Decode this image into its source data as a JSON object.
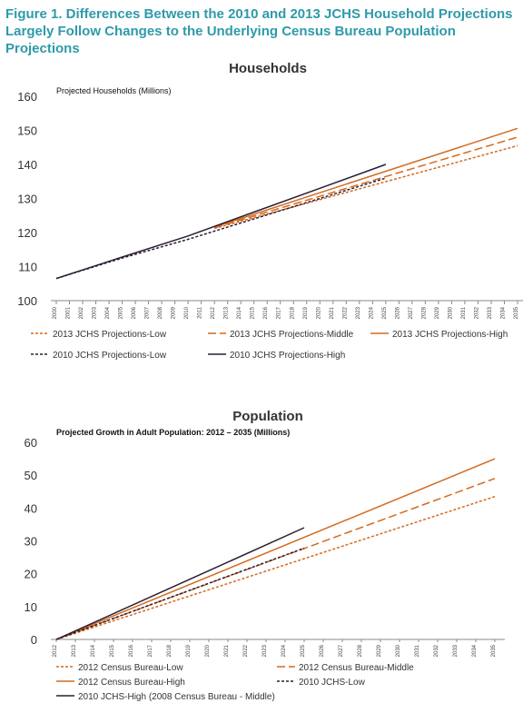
{
  "figure_title": "Figure 1. Differences Between the 2010 and 2013 JCHS Household Projections Largely Follow Changes to the Underlying Census Bureau Population Projections",
  "colors": {
    "accent_title": "#2e9aa9",
    "orange": "#d46a1f",
    "dark": "#2b1e33"
  },
  "chart_data": [
    {
      "type": "line",
      "title": "Households",
      "subtitle": "Projected Households (Millions)",
      "ylim": [
        100,
        160
      ],
      "yticks": [
        100,
        110,
        120,
        130,
        140,
        150,
        160
      ],
      "x_categories": [
        "2000",
        "2001",
        "2002",
        "2003",
        "2004",
        "2005",
        "2006",
        "2007",
        "2008",
        "2009",
        "2010",
        "2011",
        "2012",
        "2013",
        "2014",
        "2015",
        "2016",
        "2017",
        "2018",
        "2019",
        "2020",
        "2021",
        "2022",
        "2023",
        "2024",
        "2025",
        "2026",
        "2027",
        "2028",
        "2029",
        "2030",
        "2031",
        "2032",
        "2033",
        "2034",
        "2035"
      ],
      "legend_placement": "bottom",
      "grid": false,
      "series": [
        {
          "name": "2013 JCHS Projections-Low",
          "color": "#d46a1f",
          "dash": "short",
          "x": [
            2012,
            2035
          ],
          "y": [
            121.2,
            145.5
          ]
        },
        {
          "name": "2013 JCHS Projections-Middle",
          "color": "#d46a1f",
          "dash": "long",
          "x": [
            2012,
            2035
          ],
          "y": [
            121.4,
            148.0
          ]
        },
        {
          "name": "2013 JCHS Projections-High",
          "color": "#d46a1f",
          "dash": "solid",
          "x": [
            2012,
            2035
          ],
          "y": [
            121.6,
            150.6
          ]
        },
        {
          "name": "2010 JCHS Projections-Low",
          "color": "#2b1e33",
          "dash": "short",
          "x": [
            2000,
            2005,
            2010,
            2015,
            2020,
            2025
          ],
          "y": [
            106.5,
            112.5,
            118.0,
            124.0,
            130.0,
            136.0
          ]
        },
        {
          "name": "2010 JCHS Projections-High",
          "color": "#2b1e33",
          "dash": "solid",
          "x": [
            2000,
            2005,
            2010,
            2015,
            2020,
            2025
          ],
          "y": [
            106.5,
            112.8,
            119.0,
            126.0,
            133.0,
            140.0
          ]
        }
      ]
    },
    {
      "type": "line",
      "title": "Population",
      "subtitle": "Projected Growth in Adult Population: 2012 – 2035  (Millions)",
      "ylim": [
        0,
        60
      ],
      "yticks": [
        0,
        10,
        20,
        30,
        40,
        50,
        60
      ],
      "x_categories": [
        "2012",
        "2013",
        "2014",
        "2015",
        "2016",
        "2017",
        "2018",
        "2019",
        "2020",
        "2021",
        "2022",
        "2023",
        "2024",
        "2025",
        "2026",
        "2027",
        "2028",
        "2029",
        "2030",
        "2031",
        "2032",
        "2033",
        "2034",
        "2035"
      ],
      "legend_placement": "bottom",
      "grid": false,
      "series": [
        {
          "name": "2012 Census Bureau-Low",
          "color": "#d46a1f",
          "dash": "short",
          "x": [
            2012,
            2035
          ],
          "y": [
            0,
            43.5
          ]
        },
        {
          "name": "2012 Census Bureau-Middle",
          "color": "#d46a1f",
          "dash": "long",
          "x": [
            2012,
            2035
          ],
          "y": [
            0,
            49.0
          ]
        },
        {
          "name": "2012 Census Bureau-High",
          "color": "#d46a1f",
          "dash": "solid",
          "x": [
            2012,
            2035
          ],
          "y": [
            0,
            55.0
          ]
        },
        {
          "name": "2010 JCHS-Low",
          "color": "#2b1e33",
          "dash": "short",
          "x": [
            2012,
            2025
          ],
          "y": [
            0,
            27.8
          ]
        },
        {
          "name": "2010 JCHS-High (2008 Census Bureau - Middle)",
          "color": "#2b1e33",
          "dash": "solid",
          "x": [
            2012,
            2025
          ],
          "y": [
            0,
            34.0
          ]
        }
      ]
    }
  ]
}
